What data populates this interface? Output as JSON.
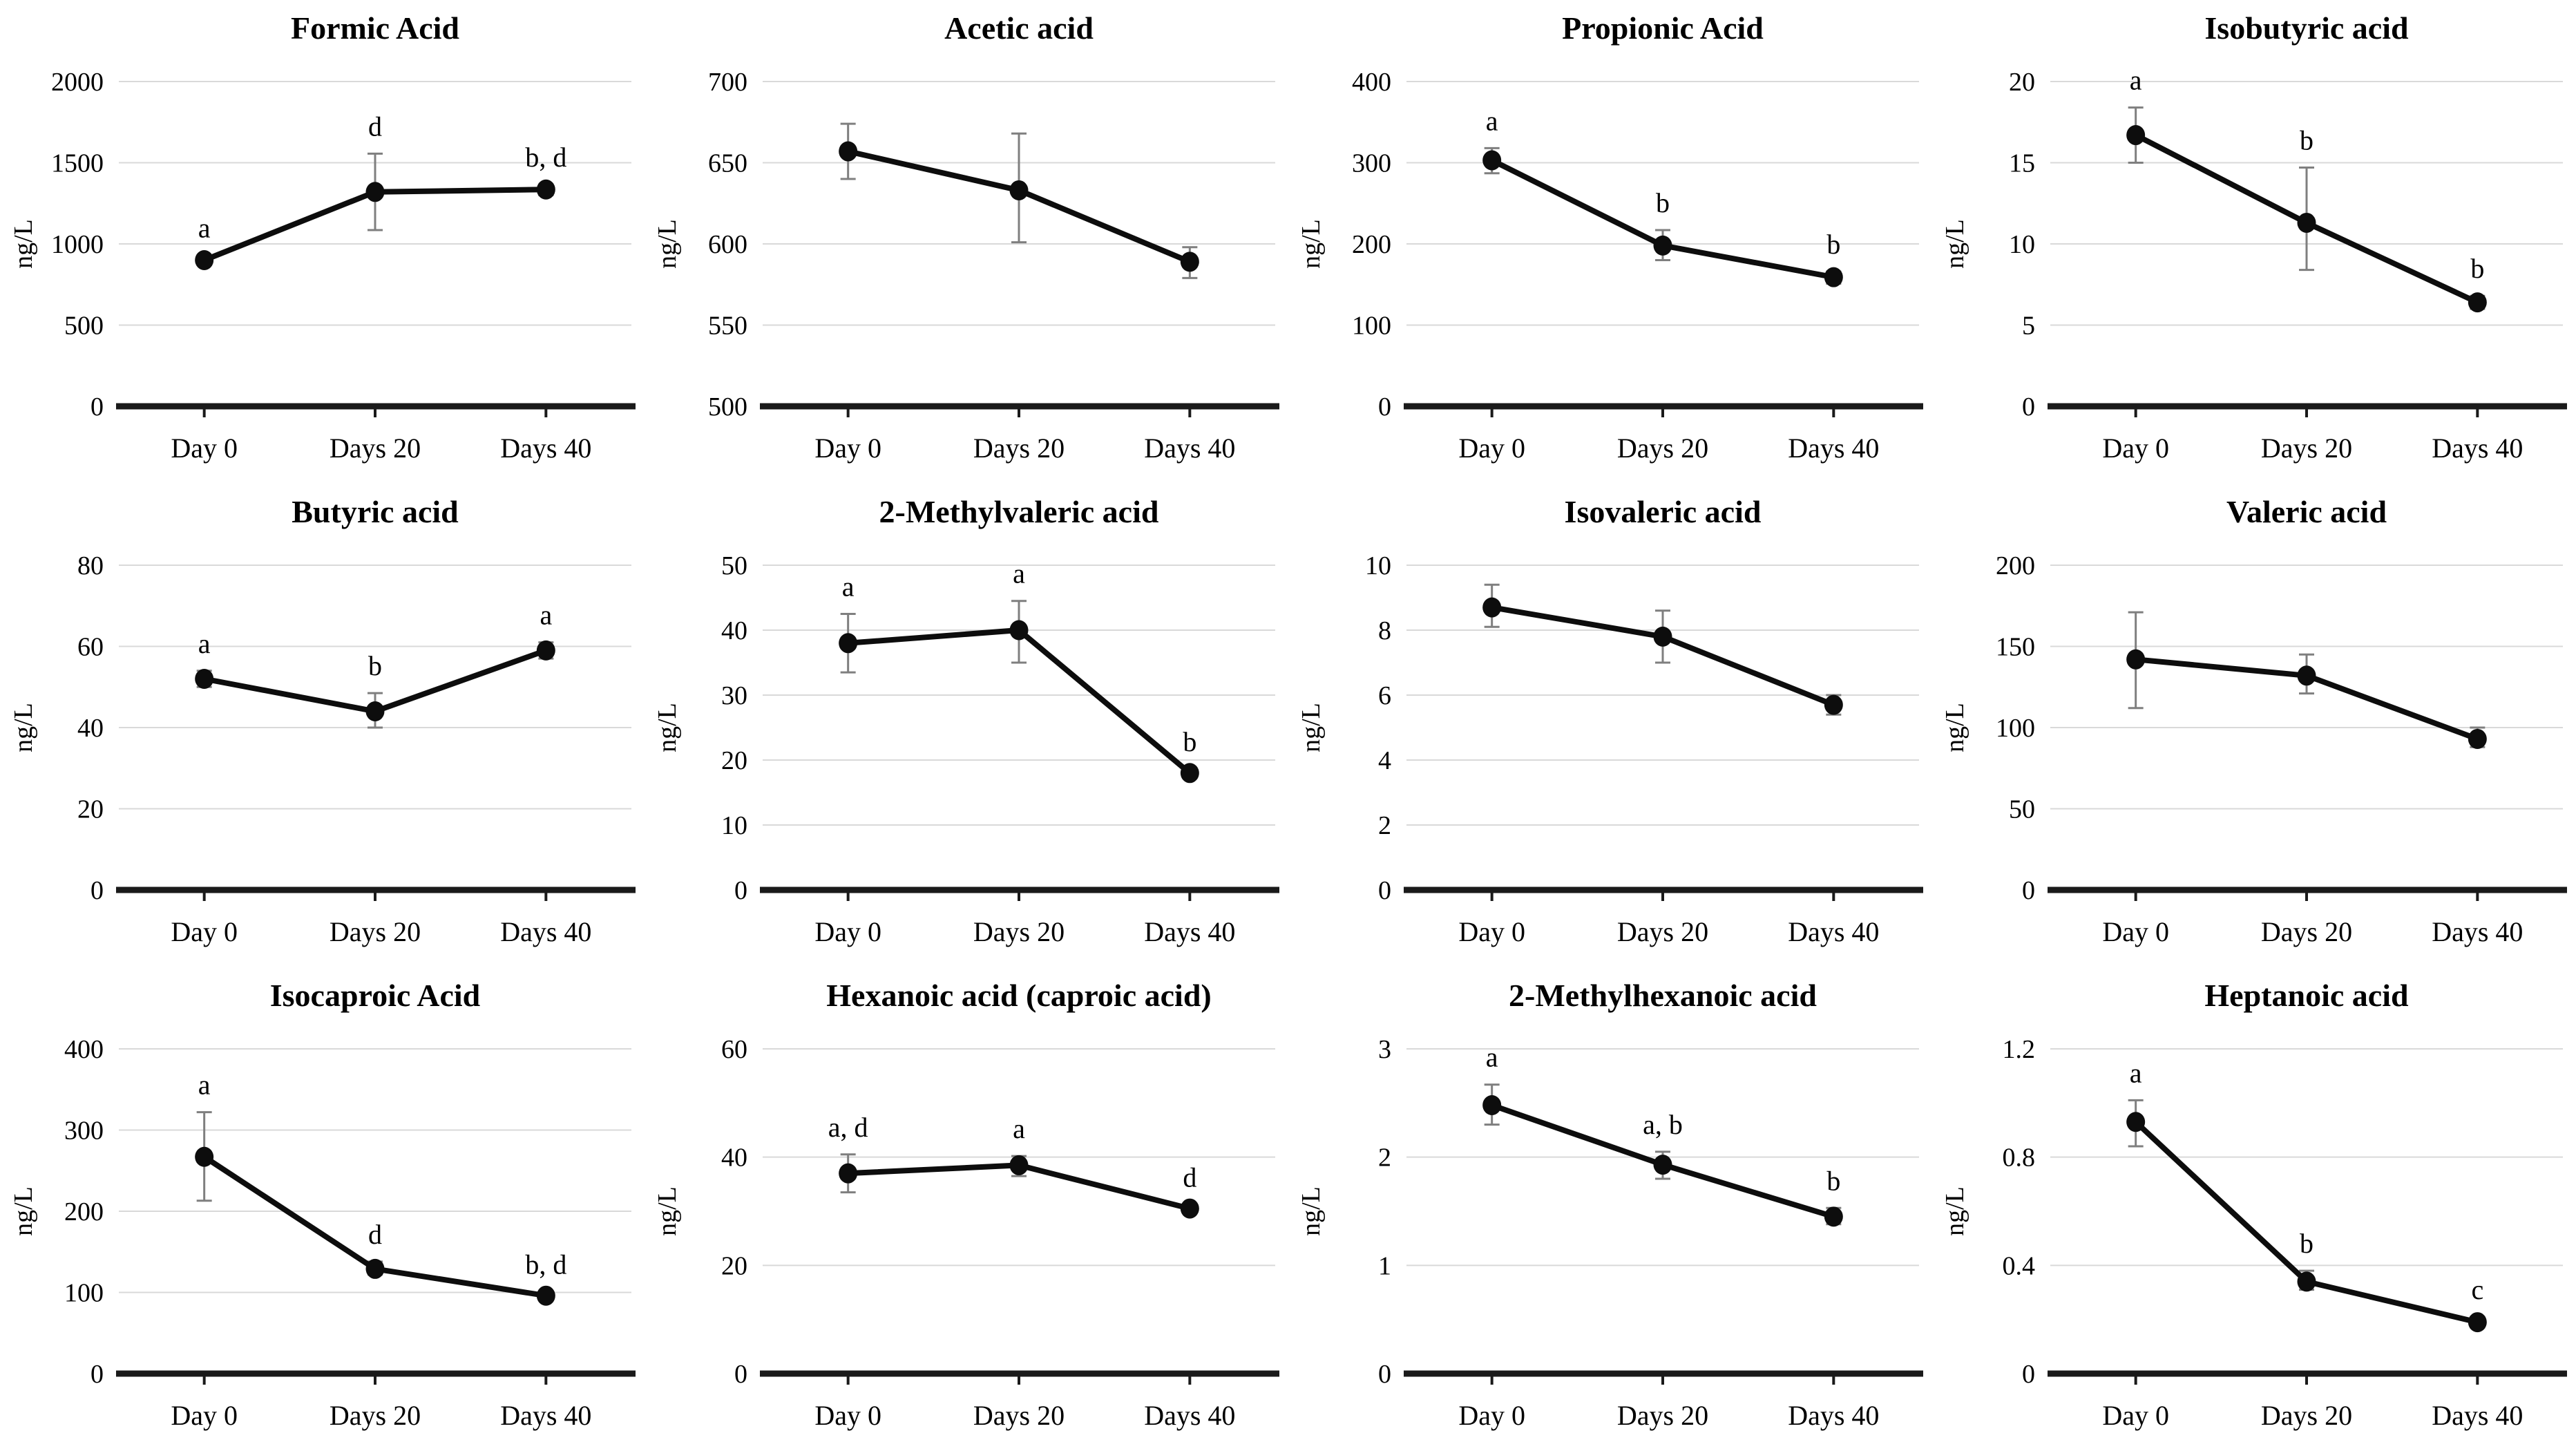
{
  "figure": {
    "unit_label": "ng/L",
    "categories": [
      "Day 0",
      "Days 20",
      "Days 40"
    ],
    "colors": {
      "line": "#0d0d0d",
      "point": "#0d0d0d",
      "error_bar": "#7f7f7f",
      "gridline": "#d9d9d9",
      "axis": "#1a1a1a",
      "text": "#1a1a1a",
      "background": "#ffffff"
    }
  },
  "chart_data": [
    {
      "type": "line",
      "title": "Formic Acid",
      "ylabel": "ng/L",
      "categories": [
        "Day 0",
        "Days 20",
        "Days 40"
      ],
      "values": [
        900,
        1320,
        1335
      ],
      "error_low": [
        870,
        1085,
        1300
      ],
      "error_high": [
        930,
        1556,
        1365
      ],
      "point_labels": [
        "a",
        "d",
        "b, d"
      ],
      "ylim": [
        0,
        2000
      ],
      "ytick_values": [
        0,
        500,
        1000,
        1500,
        2000
      ],
      "ytick_labels": [
        "0",
        "500",
        "1000",
        "1500",
        "2000"
      ],
      "grid": true,
      "legend": "none"
    },
    {
      "type": "line",
      "title": "Acetic acid",
      "ylabel": "ng/L",
      "categories": [
        "Day 0",
        "Days 20",
        "Days 40"
      ],
      "values": [
        657,
        633,
        589
      ],
      "error_low": [
        640,
        601,
        579
      ],
      "error_high": [
        674,
        668,
        598
      ],
      "point_labels": [
        null,
        null,
        null
      ],
      "ylim": [
        500,
        700
      ],
      "ytick_values": [
        500,
        550,
        600,
        650,
        700
      ],
      "ytick_labels": [
        "500",
        "550",
        "600",
        "650",
        "700"
      ],
      "grid": true,
      "legend": "none"
    },
    {
      "type": "line",
      "title": "Propionic Acid",
      "ylabel": "ng/L",
      "categories": [
        "Day 0",
        "Days 20",
        "Days 40"
      ],
      "values": [
        303,
        198,
        159
      ],
      "error_low": [
        287,
        180,
        151
      ],
      "error_high": [
        318,
        217,
        166
      ],
      "point_labels": [
        "a",
        "b",
        "b"
      ],
      "ylim": [
        0,
        400
      ],
      "ytick_values": [
        0,
        100,
        200,
        300,
        400
      ],
      "ytick_labels": [
        "0",
        "100",
        "200",
        "300",
        "400"
      ],
      "grid": true,
      "legend": "none"
    },
    {
      "type": "line",
      "title": "Isobutyric acid",
      "ylabel": "ng/L",
      "categories": [
        "Day 0",
        "Days 20",
        "Days 40"
      ],
      "values": [
        16.7,
        11.3,
        6.4
      ],
      "error_low": [
        15.0,
        8.4,
        6.0
      ],
      "error_high": [
        18.4,
        14.7,
        6.8
      ],
      "point_labels": [
        "a",
        "b",
        "b"
      ],
      "ylim": [
        0,
        20
      ],
      "ytick_values": [
        0,
        5,
        10,
        15,
        20
      ],
      "ytick_labels": [
        "0",
        "5",
        "10",
        "15",
        "20"
      ],
      "grid": true,
      "legend": "none"
    },
    {
      "type": "line",
      "title": "Butyric acid",
      "ylabel": "ng/L",
      "categories": [
        "Day 0",
        "Days 20",
        "Days 40"
      ],
      "values": [
        52,
        44,
        59
      ],
      "error_low": [
        50,
        40,
        57
      ],
      "error_high": [
        54,
        48.5,
        61
      ],
      "point_labels": [
        "a",
        "b",
        "a"
      ],
      "ylim": [
        0,
        80
      ],
      "ytick_values": [
        0,
        20,
        40,
        60,
        80
      ],
      "ytick_labels": [
        "0",
        "20",
        "40",
        "60",
        "80"
      ],
      "grid": true,
      "legend": "none"
    },
    {
      "type": "line",
      "title": "2-Methylvaleric acid",
      "ylabel": "ng/L",
      "categories": [
        "Day 0",
        "Days 20",
        "Days 40"
      ],
      "values": [
        38,
        40,
        18
      ],
      "error_low": [
        33.5,
        35,
        17.4
      ],
      "error_high": [
        42.5,
        44.5,
        18.6
      ],
      "point_labels": [
        "a",
        "a",
        "b"
      ],
      "ylim": [
        0,
        50
      ],
      "ytick_values": [
        0,
        10,
        20,
        30,
        40,
        50
      ],
      "ytick_labels": [
        "0",
        "10",
        "20",
        "30",
        "40",
        "50"
      ],
      "grid": true,
      "legend": "none"
    },
    {
      "type": "line",
      "title": "Isovaleric acid",
      "ylabel": "ng/L",
      "categories": [
        "Day 0",
        "Days 20",
        "Days 40"
      ],
      "values": [
        8.7,
        7.8,
        5.7
      ],
      "error_low": [
        8.1,
        7.0,
        5.4
      ],
      "error_high": [
        9.4,
        8.6,
        6.0
      ],
      "point_labels": [
        null,
        null,
        null
      ],
      "ylim": [
        0,
        10
      ],
      "ytick_values": [
        0,
        2,
        4,
        6,
        8,
        10
      ],
      "ytick_labels": [
        "0",
        "2",
        "4",
        "6",
        "8",
        "10"
      ],
      "grid": true,
      "legend": "none"
    },
    {
      "type": "line",
      "title": "Valeric acid",
      "ylabel": "ng/L",
      "categories": [
        "Day 0",
        "Days 20",
        "Days 40"
      ],
      "values": [
        142,
        132,
        93
      ],
      "error_low": [
        112,
        121,
        88
      ],
      "error_high": [
        171,
        145,
        100
      ],
      "point_labels": [
        null,
        null,
        null
      ],
      "ylim": [
        0,
        200
      ],
      "ytick_values": [
        0,
        50,
        100,
        150,
        200
      ],
      "ytick_labels": [
        "0",
        "50",
        "100",
        "150",
        "200"
      ],
      "grid": true,
      "legend": "none"
    },
    {
      "type": "line",
      "title": "Isocaproic Acid",
      "ylabel": "ng/L",
      "categories": [
        "Day 0",
        "Days 20",
        "Days 40"
      ],
      "values": [
        267,
        129,
        96
      ],
      "error_low": [
        213,
        122,
        92
      ],
      "error_high": [
        322,
        138,
        101
      ],
      "point_labels": [
        "a",
        "d",
        "b, d"
      ],
      "ylim": [
        0,
        400
      ],
      "ytick_values": [
        0,
        100,
        200,
        300,
        400
      ],
      "ytick_labels": [
        "0",
        "100",
        "200",
        "300",
        "400"
      ],
      "grid": true,
      "legend": "none"
    },
    {
      "type": "line",
      "title": "Hexanoic acid (caproic acid)",
      "ylabel": "ng/L",
      "categories": [
        "Day 0",
        "Days 20",
        "Days 40"
      ],
      "values": [
        37,
        38.5,
        30.5
      ],
      "error_low": [
        33.5,
        36.5,
        30
      ],
      "error_high": [
        40.5,
        40.2,
        31.2
      ],
      "point_labels": [
        "a, d",
        "a",
        "d"
      ],
      "ylim": [
        0,
        60
      ],
      "ytick_values": [
        0,
        20,
        40,
        60
      ],
      "ytick_labels": [
        "0",
        "20",
        "40",
        "60"
      ],
      "grid": true,
      "legend": "none"
    },
    {
      "type": "line",
      "title": "2-Methylhexanoic acid",
      "ylabel": "ng/L",
      "categories": [
        "Day 0",
        "Days 20",
        "Days 40"
      ],
      "values": [
        2.48,
        1.93,
        1.45
      ],
      "error_low": [
        2.3,
        1.8,
        1.38
      ],
      "error_high": [
        2.67,
        2.05,
        1.53
      ],
      "point_labels": [
        "a",
        "a, b",
        "b"
      ],
      "ylim": [
        0,
        3
      ],
      "ytick_values": [
        0,
        1,
        2,
        3
      ],
      "ytick_labels": [
        "0",
        "1",
        "2",
        "3"
      ],
      "grid": true,
      "legend": "none"
    },
    {
      "type": "line",
      "title": "Heptanoic acid",
      "ylabel": "ng/L",
      "categories": [
        "Day 0",
        "Days 20",
        "Days 40"
      ],
      "values": [
        0.93,
        0.34,
        0.19
      ],
      "error_low": [
        0.84,
        0.31,
        0.17
      ],
      "error_high": [
        1.01,
        0.38,
        0.21
      ],
      "point_labels": [
        "a",
        "b",
        "c"
      ],
      "ylim": [
        0,
        1.2
      ],
      "ytick_values": [
        0,
        0.4,
        0.8,
        1.2
      ],
      "ytick_labels": [
        "0",
        "0.4",
        "0.8",
        "1.2"
      ],
      "grid": true,
      "legend": "none"
    }
  ]
}
